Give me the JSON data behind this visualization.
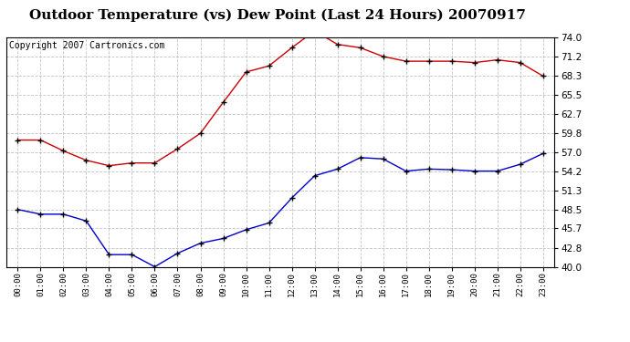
{
  "title": "Outdoor Temperature (vs) Dew Point (Last 24 Hours) 20070917",
  "copyright_text": "Copyright 2007 Cartronics.com",
  "hours": [
    "00:00",
    "01:00",
    "02:00",
    "03:00",
    "04:00",
    "05:00",
    "06:00",
    "07:00",
    "08:00",
    "09:00",
    "10:00",
    "11:00",
    "12:00",
    "13:00",
    "14:00",
    "15:00",
    "16:00",
    "17:00",
    "18:00",
    "19:00",
    "20:00",
    "21:00",
    "22:00",
    "23:00"
  ],
  "temp": [
    58.8,
    58.8,
    57.2,
    55.8,
    55.0,
    55.4,
    55.4,
    57.5,
    59.8,
    64.4,
    68.9,
    69.8,
    72.5,
    75.0,
    73.0,
    72.5,
    71.2,
    70.5,
    70.5,
    70.5,
    70.3,
    70.7,
    70.3,
    68.3
  ],
  "dewpoint": [
    48.5,
    47.8,
    47.8,
    46.8,
    41.8,
    41.8,
    40.0,
    42.0,
    43.5,
    44.2,
    45.5,
    46.5,
    50.2,
    53.5,
    54.5,
    56.2,
    56.0,
    54.2,
    54.5,
    54.4,
    54.2,
    54.2,
    55.2,
    56.8
  ],
  "yticks": [
    40.0,
    42.8,
    45.7,
    48.5,
    51.3,
    54.2,
    57.0,
    59.8,
    62.7,
    65.5,
    68.3,
    71.2,
    74.0
  ],
  "ylim": [
    40.0,
    74.0
  ],
  "temp_color": "#cc0000",
  "dew_color": "#0000cc",
  "grid_color": "#bbbbbb",
  "bg_color": "#ffffff",
  "title_fontsize": 11,
  "copyright_fontsize": 7
}
